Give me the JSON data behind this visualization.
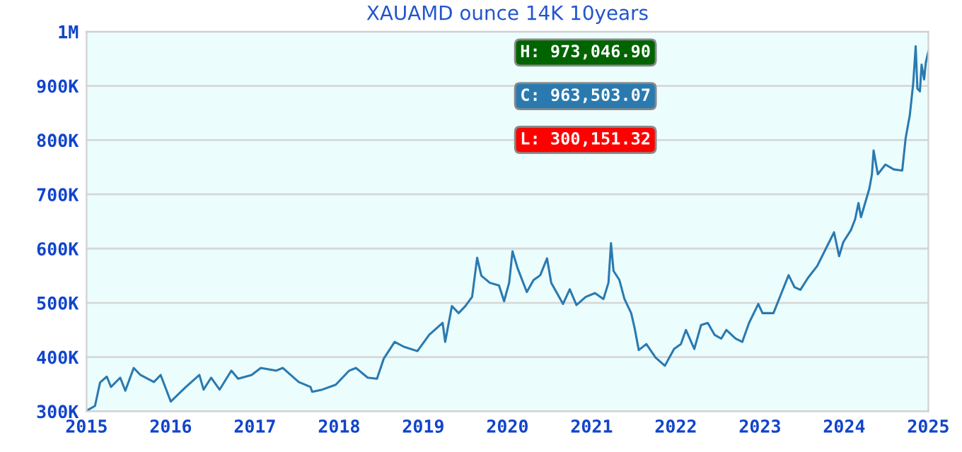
{
  "chart_data": {
    "type": "line",
    "title": "XAUAMD ounce 14K 10years",
    "x": [
      2015.0,
      2015.1,
      2015.16,
      2015.24,
      2015.29,
      2015.4,
      2015.46,
      2015.56,
      2015.64,
      2015.8,
      2015.88,
      2016.0,
      2016.18,
      2016.34,
      2016.39,
      2016.48,
      2016.58,
      2016.72,
      2016.8,
      2016.96,
      2017.07,
      2017.25,
      2017.33,
      2017.52,
      2017.66,
      2017.68,
      2017.8,
      2017.96,
      2018.12,
      2018.2,
      2018.34,
      2018.45,
      2018.53,
      2018.66,
      2018.77,
      2018.93,
      2019.07,
      2019.23,
      2019.26,
      2019.34,
      2019.42,
      2019.5,
      2019.58,
      2019.64,
      2019.69,
      2019.79,
      2019.9,
      2019.96,
      2020.02,
      2020.06,
      2020.12,
      2020.23,
      2020.31,
      2020.39,
      2020.47,
      2020.52,
      2020.66,
      2020.74,
      2020.82,
      2020.93,
      2021.04,
      2021.14,
      2021.2,
      2021.23,
      2021.26,
      2021.33,
      2021.39,
      2021.47,
      2021.51,
      2021.56,
      2021.65,
      2021.76,
      2021.87,
      2021.98,
      2022.06,
      2022.12,
      2022.22,
      2022.3,
      2022.38,
      2022.46,
      2022.54,
      2022.6,
      2022.71,
      2022.79,
      2022.87,
      2022.98,
      2023.03,
      2023.16,
      2023.25,
      2023.34,
      2023.41,
      2023.48,
      2023.57,
      2023.68,
      2023.78,
      2023.88,
      2023.94,
      2023.99,
      2024.08,
      2024.13,
      2024.17,
      2024.2,
      2024.3,
      2024.33,
      2024.35,
      2024.4,
      2024.49,
      2024.59,
      2024.69,
      2024.73,
      2024.78,
      2024.82,
      2024.85,
      2024.87,
      2024.9,
      2024.92,
      2024.95,
      2024.97,
      2025.0
    ],
    "series": [
      {
        "color": "#2a7ab0",
        "values": [
          301000,
          310000,
          353000,
          364000,
          345000,
          362000,
          338000,
          380000,
          367000,
          354000,
          367000,
          318000,
          345000,
          367000,
          340000,
          362000,
          340000,
          375000,
          360000,
          367000,
          380000,
          375000,
          380000,
          354000,
          345000,
          336000,
          340000,
          349000,
          375000,
          380000,
          362000,
          360000,
          397000,
          428000,
          419000,
          411000,
          441000,
          463000,
          428000,
          494000,
          481000,
          494000,
          511000,
          583000,
          550000,
          537000,
          532000,
          503000,
          537000,
          595000,
          564000,
          520000,
          542000,
          551000,
          582000,
          537000,
          498000,
          525000,
          496000,
          511000,
          518000,
          507000,
          537000,
          610000,
          559000,
          542000,
          507000,
          481000,
          454000,
          413000,
          424000,
          399000,
          384000,
          415000,
          424000,
          450000,
          415000,
          459000,
          463000,
          441000,
          434000,
          450000,
          434000,
          428000,
          463000,
          498000,
          481000,
          481000,
          516000,
          551000,
          529000,
          524000,
          546000,
          568000,
          599000,
          630000,
          586000,
          612000,
          634000,
          654000,
          684000,
          658000,
          711000,
          737000,
          781000,
          737000,
          755000,
          746000,
          744000,
          803000,
          846000,
          904000,
          973000,
          895000,
          890000,
          939000,
          912000,
          943000,
          963503
        ]
      }
    ],
    "xlim": [
      2015,
      2025
    ],
    "xticks": [
      2015,
      2016,
      2017,
      2018,
      2019,
      2020,
      2021,
      2022,
      2023,
      2024,
      2025
    ],
    "ylim": [
      300000,
      1000000
    ],
    "yticks": [
      {
        "value": 300000,
        "label": "300K"
      },
      {
        "value": 400000,
        "label": "400K"
      },
      {
        "value": 500000,
        "label": "500K"
      },
      {
        "value": 600000,
        "label": "600K"
      },
      {
        "value": 700000,
        "label": "700K"
      },
      {
        "value": 800000,
        "label": "800K"
      },
      {
        "value": 900000,
        "label": "900K"
      },
      {
        "value": 1000000,
        "label": "1M"
      }
    ],
    "grid": "y",
    "marker": "none",
    "line_style": "solid",
    "annotations": [
      "H: 973,046.90",
      "C: 963,503.07",
      "L: 300,151.32"
    ]
  }
}
